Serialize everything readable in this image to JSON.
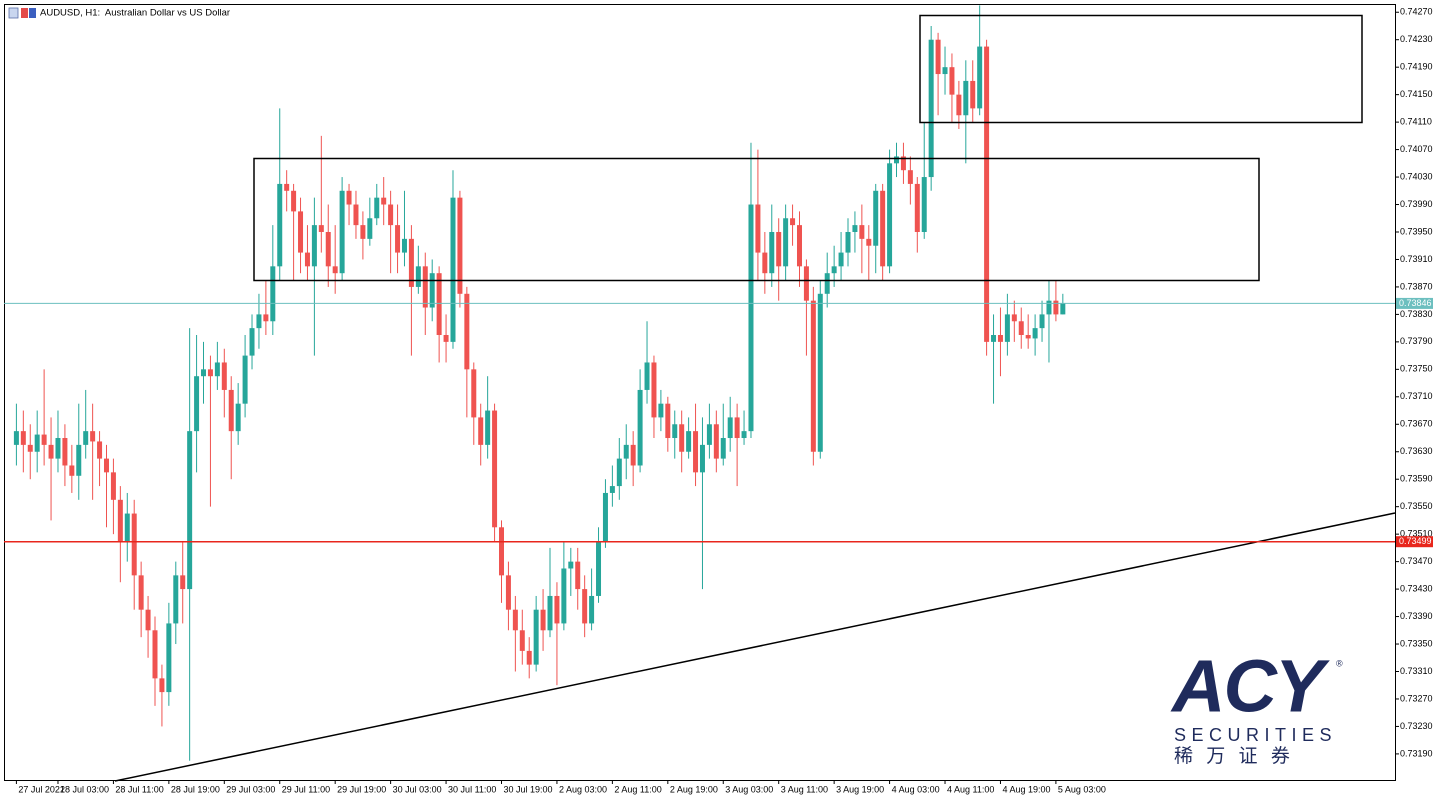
{
  "chart_data": {
    "type": "candlestick",
    "title": "AUDUSD, H1:  Australian Dollar vs US Dollar",
    "up_color": "#26a69a",
    "down_color": "#ef5350",
    "ylim": [
      0.73152,
      0.74282
    ],
    "yticks": [
      {
        "value": 0.7427,
        "label": "0.74270"
      },
      {
        "value": 0.7423,
        "label": "0.74230"
      },
      {
        "value": 0.7419,
        "label": "0.74190"
      },
      {
        "value": 0.7415,
        "label": "0.74150"
      },
      {
        "value": 0.7411,
        "label": "0.74110"
      },
      {
        "value": 0.7407,
        "label": "0.74070"
      },
      {
        "value": 0.7403,
        "label": "0.74030"
      },
      {
        "value": 0.7399,
        "label": "0.73990"
      },
      {
        "value": 0.7395,
        "label": "0.73950"
      },
      {
        "value": 0.7391,
        "label": "0.73910"
      },
      {
        "value": 0.7387,
        "label": "0.73870"
      },
      {
        "value": 0.7383,
        "label": "0.73830"
      },
      {
        "value": 0.7379,
        "label": "0.73790"
      },
      {
        "value": 0.7375,
        "label": "0.73750"
      },
      {
        "value": 0.7371,
        "label": "0.73710"
      },
      {
        "value": 0.7367,
        "label": "0.73670"
      },
      {
        "value": 0.7363,
        "label": "0.73630"
      },
      {
        "value": 0.7359,
        "label": "0.73590"
      },
      {
        "value": 0.7355,
        "label": "0.73550"
      },
      {
        "value": 0.7351,
        "label": "0.73510"
      },
      {
        "value": 0.7347,
        "label": "0.73470"
      },
      {
        "value": 0.7343,
        "label": "0.73430"
      },
      {
        "value": 0.7339,
        "label": "0.73390"
      },
      {
        "value": 0.7335,
        "label": "0.73350"
      },
      {
        "value": 0.7331,
        "label": "0.73310"
      },
      {
        "value": 0.7327,
        "label": "0.73270"
      },
      {
        "value": 0.7323,
        "label": "0.73230"
      },
      {
        "value": 0.7319,
        "label": "0.73190"
      }
    ],
    "hlines": [
      {
        "value": 0.73846,
        "color": "#6cbfbf"
      },
      {
        "value": 0.73499,
        "color": "#e8261c"
      }
    ],
    "categories": [
      "27 Jul 2021",
      null,
      null,
      null,
      null,
      null,
      "28 Jul 03:00",
      null,
      null,
      null,
      null,
      null,
      null,
      null,
      "28 Jul 11:00",
      null,
      null,
      null,
      null,
      null,
      null,
      null,
      "28 Jul 19:00",
      null,
      null,
      null,
      null,
      null,
      null,
      null,
      "29 Jul 03:00",
      null,
      null,
      null,
      null,
      null,
      null,
      null,
      "29 Jul 11:00",
      null,
      null,
      null,
      null,
      null,
      null,
      null,
      "29 Jul 19:00",
      null,
      null,
      null,
      null,
      null,
      null,
      null,
      "30 Jul 03:00",
      null,
      null,
      null,
      null,
      null,
      null,
      null,
      "30 Jul 11:00",
      null,
      null,
      null,
      null,
      null,
      null,
      null,
      "30 Jul 19:00",
      null,
      null,
      null,
      null,
      null,
      null,
      null,
      "2 Aug 03:00",
      null,
      null,
      null,
      null,
      null,
      null,
      null,
      "2 Aug 11:00",
      null,
      null,
      null,
      null,
      null,
      null,
      null,
      "2 Aug 19:00",
      null,
      null,
      null,
      null,
      null,
      null,
      null,
      "3 Aug 03:00",
      null,
      null,
      null,
      null,
      null,
      null,
      null,
      "3 Aug 11:00",
      null,
      null,
      null,
      null,
      null,
      null,
      null,
      "3 Aug 19:00",
      null,
      null,
      null,
      null,
      null,
      null,
      null,
      "4 Aug 03:00",
      null,
      null,
      null,
      null,
      null,
      null,
      null,
      "4 Aug 11:00",
      null,
      null,
      null,
      null,
      null,
      null,
      null,
      "4 Aug 19:00",
      null,
      null,
      null,
      null,
      null,
      null,
      null,
      "5 Aug 03:00",
      null
    ],
    "open": [
      0.7364,
      0.7366,
      0.7364,
      0.7363,
      0.73655,
      0.7364,
      0.7362,
      0.7365,
      0.7361,
      0.73595,
      0.7364,
      0.7366,
      0.73645,
      0.7362,
      0.736,
      0.7356,
      0.735,
      0.7354,
      0.7345,
      0.734,
      0.7337,
      0.733,
      0.7328,
      0.7338,
      0.7345,
      0.7343,
      0.7366,
      0.7374,
      0.7375,
      0.7374,
      0.7376,
      0.7372,
      0.7366,
      0.737,
      0.7377,
      0.7381,
      0.7383,
      0.7382,
      0.739,
      0.7402,
      0.7401,
      0.7398,
      0.7392,
      0.739,
      0.7396,
      0.7395,
      0.739,
      0.7389,
      0.7401,
      0.7399,
      0.7396,
      0.7394,
      0.7397,
      0.74,
      0.7399,
      0.7396,
      0.7392,
      0.7394,
      0.7387,
      0.739,
      0.7384,
      0.7389,
      0.738,
      0.7379,
      0.74,
      0.7386,
      0.7375,
      0.7368,
      0.7364,
      0.7369,
      0.7352,
      0.7345,
      0.734,
      0.7337,
      0.7334,
      0.7332,
      0.734,
      0.7337,
      0.7342,
      0.7338,
      0.7346,
      0.7347,
      0.7343,
      0.7338,
      0.7342,
      0.735,
      0.7357,
      0.7358,
      0.7362,
      0.7364,
      0.7361,
      0.7372,
      0.7376,
      0.7368,
      0.737,
      0.7365,
      0.7367,
      0.7363,
      0.7366,
      0.736,
      0.7364,
      0.7367,
      0.7362,
      0.7365,
      0.7368,
      0.7365,
      0.7366,
      0.7399,
      0.7392,
      0.7389,
      0.7395,
      0.739,
      0.7397,
      0.7396,
      0.739,
      0.7385,
      0.7363,
      0.7386,
      0.7389,
      0.739,
      0.7392,
      0.7395,
      0.7396,
      0.7394,
      0.7393,
      0.7401,
      0.739,
      0.7405,
      0.7406,
      0.7404,
      0.7402,
      0.7395,
      0.7403,
      0.7423,
      0.7418,
      0.7419,
      0.7415,
      0.7412,
      0.7417,
      0.7413,
      0.7422,
      0.7379,
      0.738,
      0.7379,
      0.7383,
      0.7382,
      0.738,
      0.73795,
      0.7381,
      0.7383,
      0.7385,
      0.7383
    ],
    "high": [
      0.737,
      0.7369,
      0.7367,
      0.7369,
      0.7375,
      0.7368,
      0.7369,
      0.7367,
      0.7364,
      0.737,
      0.7372,
      0.737,
      0.7366,
      0.7364,
      0.7362,
      0.7358,
      0.7357,
      0.7356,
      0.7347,
      0.7342,
      0.7339,
      0.7332,
      0.7341,
      0.7347,
      0.735,
      0.7381,
      0.738,
      0.7379,
      0.7377,
      0.7379,
      0.7378,
      0.7374,
      0.7373,
      0.738,
      0.7383,
      0.7386,
      0.7388,
      0.7396,
      0.7413,
      0.7404,
      0.7402,
      0.74,
      0.7396,
      0.74,
      0.7409,
      0.7399,
      0.7396,
      0.7403,
      0.7402,
      0.7401,
      0.7398,
      0.74,
      0.7402,
      0.7403,
      0.7401,
      0.7399,
      0.7401,
      0.7396,
      0.7393,
      0.7392,
      0.7391,
      0.739,
      0.7383,
      0.7404,
      0.7401,
      0.7387,
      0.7376,
      0.737,
      0.7374,
      0.737,
      0.7353,
      0.7347,
      0.7342,
      0.734,
      0.7336,
      0.7342,
      0.7343,
      0.7349,
      0.7344,
      0.735,
      0.7349,
      0.7349,
      0.7345,
      0.7346,
      0.7352,
      0.7359,
      0.7361,
      0.7365,
      0.7367,
      0.7366,
      0.7375,
      0.7382,
      0.7377,
      0.7372,
      0.7371,
      0.7369,
      0.7369,
      0.7368,
      0.737,
      0.7368,
      0.737,
      0.7369,
      0.737,
      0.7371,
      0.737,
      0.7369,
      0.7408,
      0.7407,
      0.7395,
      0.7399,
      0.7397,
      0.7399,
      0.7399,
      0.7398,
      0.7391,
      0.7387,
      0.7388,
      0.7392,
      0.7393,
      0.7395,
      0.7397,
      0.7398,
      0.7399,
      0.7396,
      0.7402,
      0.7402,
      0.7407,
      0.7408,
      0.7408,
      0.7406,
      0.7403,
      0.7411,
      0.7425,
      0.7424,
      0.7422,
      0.7421,
      0.7417,
      0.742,
      0.742,
      0.7428,
      0.7423,
      0.7383,
      0.7384,
      0.7386,
      0.7385,
      0.7384,
      0.7383,
      0.7383,
      0.7385,
      0.7388,
      0.7388,
      0.7386
    ],
    "low": [
      0.7361,
      0.736,
      0.7359,
      0.736,
      0.7361,
      0.7353,
      0.736,
      0.7358,
      0.7357,
      0.7356,
      0.7362,
      0.7356,
      0.7358,
      0.7352,
      0.7351,
      0.7344,
      0.7347,
      0.734,
      0.7336,
      0.7333,
      0.7326,
      0.7323,
      0.7326,
      0.7335,
      0.7338,
      0.7318,
      0.736,
      0.737,
      0.7355,
      0.7372,
      0.7368,
      0.7359,
      0.7364,
      0.7368,
      0.7375,
      0.7378,
      0.738,
      0.738,
      0.7388,
      0.7398,
      0.7388,
      0.7389,
      0.7388,
      0.7377,
      0.7392,
      0.7387,
      0.7386,
      0.7388,
      0.7396,
      0.7394,
      0.7391,
      0.7393,
      0.7396,
      0.7396,
      0.7389,
      0.7389,
      0.739,
      0.7377,
      0.7386,
      0.738,
      0.7382,
      0.7376,
      0.7376,
      0.7378,
      0.7384,
      0.7368,
      0.7364,
      0.7361,
      0.7362,
      0.735,
      0.7341,
      0.7337,
      0.7331,
      0.7332,
      0.733,
      0.7331,
      0.7334,
      0.7336,
      0.7329,
      0.7337,
      0.7342,
      0.734,
      0.7336,
      0.7337,
      0.7341,
      0.7349,
      0.7355,
      0.7356,
      0.7359,
      0.7358,
      0.736,
      0.737,
      0.7365,
      0.7366,
      0.7363,
      0.7362,
      0.736,
      0.7362,
      0.7358,
      0.7343,
      0.7362,
      0.736,
      0.7361,
      0.7363,
      0.7358,
      0.7364,
      0.7365,
      0.7388,
      0.7386,
      0.7387,
      0.7385,
      0.7388,
      0.7393,
      0.7387,
      0.7377,
      0.7361,
      0.7362,
      0.7384,
      0.7387,
      0.7388,
      0.739,
      0.7392,
      0.7389,
      0.7388,
      0.7389,
      0.7388,
      0.7389,
      0.7403,
      0.7402,
      0.7399,
      0.7392,
      0.7394,
      0.7401,
      0.7412,
      0.7415,
      0.7411,
      0.741,
      0.7405,
      0.7411,
      0.7412,
      0.7377,
      0.737,
      0.7374,
      0.7377,
      0.7379,
      0.7378,
      0.7378,
      0.7377,
      0.7379,
      0.7376,
      0.7382,
      0.7383
    ],
    "close": [
      0.7366,
      0.7364,
      0.7363,
      0.73655,
      0.7364,
      0.7362,
      0.7365,
      0.7361,
      0.73595,
      0.7364,
      0.7366,
      0.73645,
      0.7362,
      0.736,
      0.7356,
      0.735,
      0.7354,
      0.7345,
      0.734,
      0.7337,
      0.733,
      0.7328,
      0.7338,
      0.7345,
      0.7343,
      0.7366,
      0.7374,
      0.7375,
      0.7374,
      0.7376,
      0.7372,
      0.7366,
      0.737,
      0.7377,
      0.7381,
      0.7383,
      0.7382,
      0.739,
      0.7402,
      0.7401,
      0.7398,
      0.7392,
      0.739,
      0.7396,
      0.7395,
      0.739,
      0.7389,
      0.7401,
      0.7399,
      0.7396,
      0.7394,
      0.7397,
      0.74,
      0.7399,
      0.7396,
      0.7392,
      0.7394,
      0.7387,
      0.739,
      0.7384,
      0.7389,
      0.738,
      0.7379,
      0.74,
      0.7386,
      0.7375,
      0.7368,
      0.7364,
      0.7369,
      0.7352,
      0.7345,
      0.734,
      0.7337,
      0.7334,
      0.7332,
      0.734,
      0.7337,
      0.7342,
      0.7338,
      0.7346,
      0.7347,
      0.7343,
      0.7338,
      0.7342,
      0.735,
      0.7357,
      0.7358,
      0.7362,
      0.7364,
      0.7361,
      0.7372,
      0.7376,
      0.7368,
      0.737,
      0.7365,
      0.7367,
      0.7363,
      0.7366,
      0.736,
      0.7364,
      0.7367,
      0.7362,
      0.7365,
      0.7368,
      0.7365,
      0.7366,
      0.7399,
      0.7392,
      0.7389,
      0.7395,
      0.739,
      0.7397,
      0.7396,
      0.739,
      0.7385,
      0.7363,
      0.7386,
      0.7389,
      0.739,
      0.7392,
      0.7395,
      0.7396,
      0.7394,
      0.7393,
      0.7401,
      0.739,
      0.7405,
      0.7406,
      0.7404,
      0.7402,
      0.7395,
      0.7403,
      0.7423,
      0.7418,
      0.7419,
      0.7415,
      0.7412,
      0.7417,
      0.7413,
      0.7422,
      0.7379,
      0.738,
      0.7379,
      0.7383,
      0.7382,
      0.738,
      0.73795,
      0.7381,
      0.7383,
      0.7385,
      0.7383,
      0.73846
    ],
    "watermark": {
      "brand": "ACY",
      "mark": "®",
      "sub": "SECURITIES",
      "cn": "稀 万 证 券"
    }
  }
}
